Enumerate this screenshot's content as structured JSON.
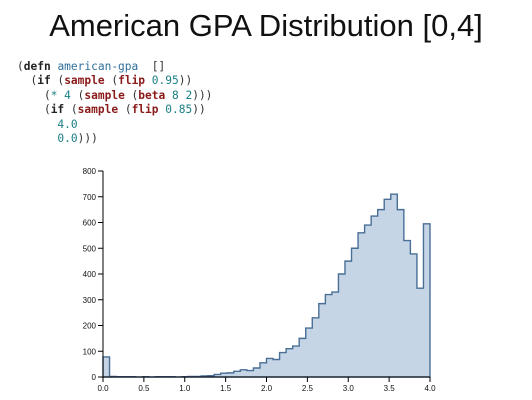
{
  "slide": {
    "title": "American GPA Distribution [0,4]"
  },
  "code": {
    "lines": [
      [
        {
          "t": "(",
          "k": "punct"
        },
        {
          "t": "defn",
          "k": "kw"
        },
        {
          "t": " american-gpa",
          "k": "name"
        },
        {
          "t": "  []",
          "k": "punct"
        }
      ],
      [
        {
          "t": "  (",
          "k": "punct"
        },
        {
          "t": "if",
          "k": "kw"
        },
        {
          "t": " (",
          "k": "punct"
        },
        {
          "t": "sample",
          "k": "fn"
        },
        {
          "t": " (",
          "k": "punct"
        },
        {
          "t": "flip",
          "k": "fn"
        },
        {
          "t": " 0.95",
          "k": "num"
        },
        {
          "t": "))",
          "k": "punct"
        }
      ],
      [
        {
          "t": "    (",
          "k": "punct"
        },
        {
          "t": "* 4",
          "k": "num"
        },
        {
          "t": " (",
          "k": "punct"
        },
        {
          "t": "sample",
          "k": "fn"
        },
        {
          "t": " (",
          "k": "punct"
        },
        {
          "t": "beta",
          "k": "fn"
        },
        {
          "t": " 8 2",
          "k": "num"
        },
        {
          "t": ")))",
          "k": "punct"
        }
      ],
      [
        {
          "t": "    (",
          "k": "punct"
        },
        {
          "t": "if",
          "k": "kw"
        },
        {
          "t": " (",
          "k": "punct"
        },
        {
          "t": "sample",
          "k": "fn"
        },
        {
          "t": " (",
          "k": "punct"
        },
        {
          "t": "flip",
          "k": "fn"
        },
        {
          "t": " 0.85",
          "k": "num"
        },
        {
          "t": "))",
          "k": "punct"
        }
      ],
      [
        {
          "t": "      4.0",
          "k": "num"
        }
      ],
      [
        {
          "t": "      0.0",
          "k": "num"
        },
        {
          "t": ")))",
          "k": "punct"
        }
      ]
    ],
    "colors": {
      "keyword": "#222222",
      "function": "#8b1a1a",
      "name": "#2f6f9a",
      "number": "#1a7f86"
    }
  },
  "chart_data": {
    "type": "area",
    "style": "step-histogram",
    "bin_width": 0.08,
    "bin_starts": [
      0.0,
      0.08,
      0.16,
      0.24,
      0.32,
      0.4,
      0.48,
      0.56,
      0.64,
      0.72,
      0.8,
      0.88,
      0.96,
      1.04,
      1.12,
      1.2,
      1.28,
      1.36,
      1.44,
      1.52,
      1.6,
      1.68,
      1.76,
      1.84,
      1.92,
      2.0,
      2.08,
      2.16,
      2.24,
      2.32,
      2.4,
      2.48,
      2.56,
      2.64,
      2.72,
      2.8,
      2.88,
      2.96,
      3.04,
      3.12,
      3.2,
      3.28,
      3.36,
      3.44,
      3.52,
      3.6,
      3.68,
      3.76,
      3.84,
      3.92
    ],
    "counts": [
      78,
      2,
      1,
      1,
      1,
      0,
      1,
      0,
      1,
      1,
      1,
      0,
      1,
      2,
      2,
      4,
      5,
      10,
      15,
      16,
      22,
      28,
      25,
      35,
      55,
      72,
      68,
      95,
      110,
      120,
      150,
      190,
      230,
      285,
      320,
      330,
      400,
      450,
      500,
      560,
      590,
      625,
      650,
      690,
      710,
      650,
      530,
      478,
      345,
      595
    ],
    "xlim": [
      0,
      4
    ],
    "ylim": [
      0,
      800
    ],
    "xticks": [
      0.0,
      0.5,
      1.0,
      1.5,
      2.0,
      2.5,
      3.0,
      3.5,
      4.0
    ],
    "xtick_labels": [
      "0.0",
      "0.5",
      "1.0",
      "1.5",
      "2.0",
      "2.5",
      "3.0",
      "3.5",
      "4.0"
    ],
    "yticks": [
      0,
      100,
      200,
      300,
      400,
      500,
      600,
      700,
      800
    ],
    "ytick_labels": [
      "0",
      "100",
      "200",
      "300",
      "400",
      "500",
      "600",
      "700",
      "800"
    ],
    "fill_color": "#c5d5e5",
    "stroke_color": "#4a6f96",
    "grid": false
  }
}
